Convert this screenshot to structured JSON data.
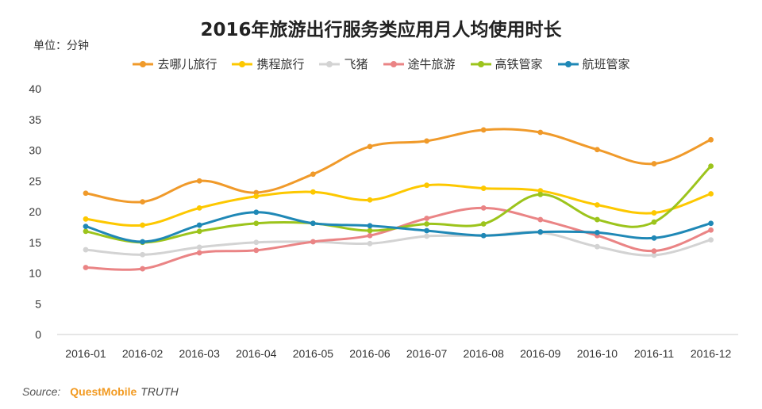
{
  "source": {
    "label": "Source:",
    "brand": "QuestMobile",
    "suffix": "TRUTH"
  },
  "chart_data": {
    "type": "line",
    "title": "2016年旅游出行服务类应用月人均使用时长",
    "unit_label": "单位：分钟",
    "xlabel": "",
    "ylabel": "",
    "ylim": [
      0,
      40
    ],
    "yticks": [
      "0",
      "5",
      "10",
      "15",
      "20",
      "25",
      "30",
      "35",
      "40"
    ],
    "grid": false,
    "legend_position": "top-center",
    "categories": [
      "2016-01",
      "2016-02",
      "2016-03",
      "2016-04",
      "2016-05",
      "2016-06",
      "2016-07",
      "2016-08",
      "2016-09",
      "2016-10",
      "2016-11",
      "2016-12"
    ],
    "series": [
      {
        "name": "去哪儿旅行",
        "color": "#f09a2a",
        "values": [
          23.0,
          21.6,
          25.0,
          23.1,
          26.1,
          30.6,
          31.5,
          33.3,
          32.9,
          30.1,
          27.8,
          31.7
        ]
      },
      {
        "name": "携程旅行",
        "color": "#fdc800",
        "values": [
          18.8,
          17.8,
          20.6,
          22.5,
          23.2,
          21.9,
          24.3,
          23.8,
          23.4,
          21.1,
          19.8,
          22.9
        ]
      },
      {
        "name": "飞猪",
        "color": "#d3d3d3",
        "values": [
          13.8,
          13.0,
          14.2,
          15.0,
          15.1,
          14.8,
          16.0,
          16.1,
          16.6,
          14.3,
          12.9,
          15.4
        ]
      },
      {
        "name": "途牛旅游",
        "color": "#ea8485",
        "values": [
          10.9,
          10.7,
          13.3,
          13.7,
          15.1,
          16.1,
          18.9,
          20.6,
          18.7,
          16.1,
          13.6,
          17.0
        ]
      },
      {
        "name": "高铁管家",
        "color": "#9cc41c",
        "values": [
          16.8,
          15.0,
          16.8,
          18.1,
          18.1,
          16.9,
          18.0,
          18.0,
          22.8,
          18.7,
          18.3,
          27.4
        ]
      },
      {
        "name": "航班管家",
        "color": "#1f88b6",
        "values": [
          17.6,
          15.1,
          17.8,
          19.9,
          18.1,
          17.7,
          16.9,
          16.1,
          16.7,
          16.6,
          15.7,
          18.1
        ]
      }
    ]
  }
}
